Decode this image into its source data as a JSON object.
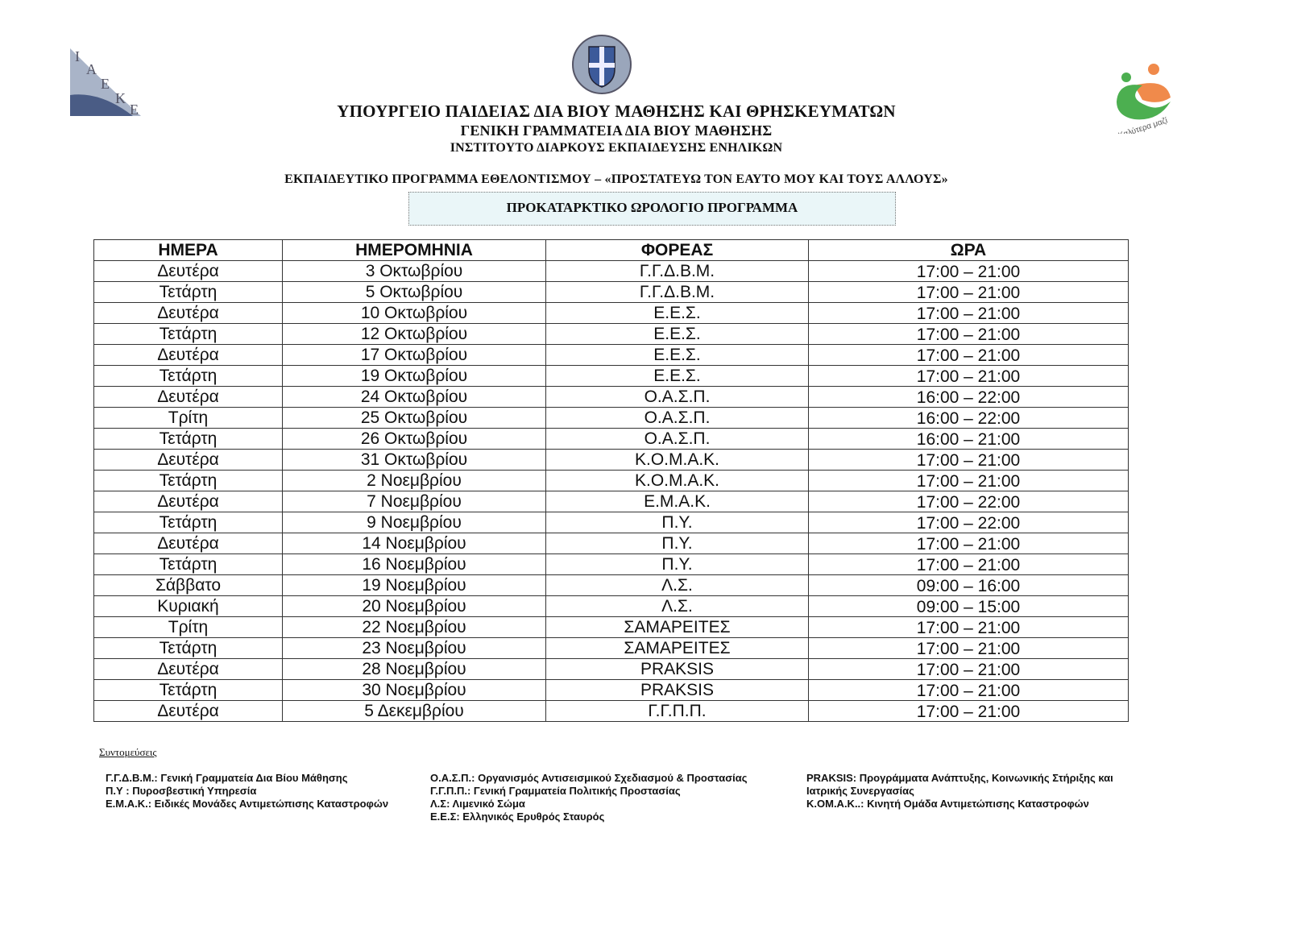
{
  "logos": {
    "left_text": "ΙΑΕΚΕ",
    "right_text": "Καλύτερα μαζί"
  },
  "header": {
    "line1": "ΥΠΟΥΡΓΕΙΟ ΠΑΙΔΕΙΑΣ ΔΙΑ ΒΙΟΥ ΜΑΘΗΣΗΣ ΚΑΙ ΘΡΗΣΚΕΥΜΑΤΩΝ",
    "line2": "ΓΕΝΙΚΗ ΓΡΑΜΜΑΤΕΙΑ ΔΙΑ ΒΙΟΥ ΜΑΘΗΣΗΣ",
    "line3": "ΙΝΣΤΙΤΟΥΤΟ ΔΙΑΡΚΟΥΣ ΕΚΠΑΙΔΕΥΣΗΣ ΕΝΗΛΙΚΩΝ",
    "program": "ΕΚΠΑΙΔΕΥΤΙΚΟ ΠΡΟΓΡΑΜΜΑ ΕΘΕΛΟΝΤΙΣΜΟΥ – «ΠΡΟΣΤΑΤΕΥΩ ΤΟΝ ΕΑΥΤΟ ΜΟΥ ΚΑΙ ΤΟΥΣ ΑΛΛΟΥΣ»",
    "title": "ΠΡΟΚΑΤΑΡΚΤΙΚΟ ΩΡΟΛΟΓΙΟ  ΠΡΟΓΡΑΜΜΑ"
  },
  "table": {
    "columns": [
      "ΗΜΕΡΑ",
      "ΗΜΕΡΟΜΗΝΙΑ",
      "ΦΟΡΕΑΣ",
      "ΩΡΑ"
    ],
    "rows": [
      [
        "Δευτέρα",
        "3 Οκτωβρίου",
        "Γ.Γ.Δ.Β.Μ.",
        "17:00 – 21:00"
      ],
      [
        "Τετάρτη",
        "5 Οκτωβρίου",
        "Γ.Γ.Δ.Β.Μ.",
        "17:00 – 21:00"
      ],
      [
        "Δευτέρα",
        "10 Οκτωβρίου",
        "Ε.Ε.Σ.",
        "17:00 – 21:00"
      ],
      [
        "Τετάρτη",
        "12 Οκτωβρίου",
        "Ε.Ε.Σ.",
        "17:00 – 21:00"
      ],
      [
        "Δευτέρα",
        "17 Οκτωβρίου",
        "Ε.Ε.Σ.",
        "17:00 – 21:00"
      ],
      [
        "Τετάρτη",
        "19 Οκτωβρίου",
        "Ε.Ε.Σ.",
        "17:00 – 21:00"
      ],
      [
        "Δευτέρα",
        "24 Οκτωβρίου",
        "Ο.Α.Σ.Π.",
        "16:00 – 22:00"
      ],
      [
        "Τρίτη",
        "25 Οκτωβρίου",
        "Ο.Α.Σ.Π.",
        "16:00 – 22:00"
      ],
      [
        "Τετάρτη",
        "26 Οκτωβρίου",
        "Ο.Α.Σ.Π.",
        "16:00 – 21:00"
      ],
      [
        "Δευτέρα",
        "31 Οκτωβρίου",
        "Κ.Ο.Μ.Α.Κ.",
        "17:00 – 21:00"
      ],
      [
        "Τετάρτη",
        "2 Νοεμβρίου",
        "Κ.Ο.Μ.Α.Κ.",
        "17:00 – 21:00"
      ],
      [
        "Δευτέρα",
        "7 Νοεμβρίου",
        "Ε.Μ.Α.Κ.",
        "17:00 – 22:00"
      ],
      [
        "Τετάρτη",
        "9 Νοεμβρίου",
        "Π.Υ.",
        "17:00 – 22:00"
      ],
      [
        "Δευτέρα",
        "14 Νοεμβρίου",
        "Π.Υ.",
        "17:00 – 21:00"
      ],
      [
        "Τετάρτη",
        "16 Νοεμβρίου",
        "Π.Υ.",
        "17:00 – 21:00"
      ],
      [
        "Σάββατο",
        "19 Νοεμβρίου",
        "Λ.Σ.",
        "09:00 – 16:00"
      ],
      [
        "Κυριακή",
        "20 Νοεμβρίου",
        "Λ.Σ.",
        "09:00 – 15:00"
      ],
      [
        "Τρίτη",
        "22 Νοεμβρίου",
        "ΣΑΜΑΡΕΙΤΕΣ",
        "17:00 – 21:00"
      ],
      [
        "Τετάρτη",
        "23 Νοεμβρίου",
        "ΣΑΜΑΡΕΙΤΕΣ",
        "17:00 – 21:00"
      ],
      [
        "Δευτέρα",
        "28 Νοεμβρίου",
        "PRAKSIS",
        "17:00 – 21:00"
      ],
      [
        "Τετάρτη",
        "30 Νοεμβρίου",
        "PRAKSIS",
        "17:00 – 21:00"
      ],
      [
        "Δευτέρα",
        "5 Δεκεμβρίου",
        "Γ.Γ.Π.Π.",
        "17:00 – 21:00"
      ]
    ]
  },
  "abbreviations": {
    "title": "Συντομεύσεις",
    "col1": [
      "Γ.Γ.Δ.Β.Μ.: Γενική Γραμματεία Δια Βίου Μάθησης",
      "Π.Υ : Πυροσβεστική Υπηρεσία",
      "Ε.Μ.Α.Κ.: Ειδικές Μονάδες Αντιμετώπισης Καταστροφών"
    ],
    "col2": [
      "Ο.Α.Σ.Π.: Οργανισμός Αντισεισμικού Σχεδιασμού & Προστασίας",
      "Γ.Γ.Π.Π.: Γενική Γραμματεία Πολιτικής Προστασίας",
      "Λ.Σ: Λιμενικό Σώμα",
      "Ε.Ε.Σ: Ελληνικός Ερυθρός Σταυρός"
    ],
    "col3": [
      "PRAKSIS: Προγράμματα Ανάπτυξης, Κοινωνικής Στήριξης και",
      "Ιατρικής Συνεργασίας",
      "Κ.ΟΜ.Α.Κ..: Κινητή Ομάδα Αντιμετώπισης Καταστροφών"
    ]
  }
}
